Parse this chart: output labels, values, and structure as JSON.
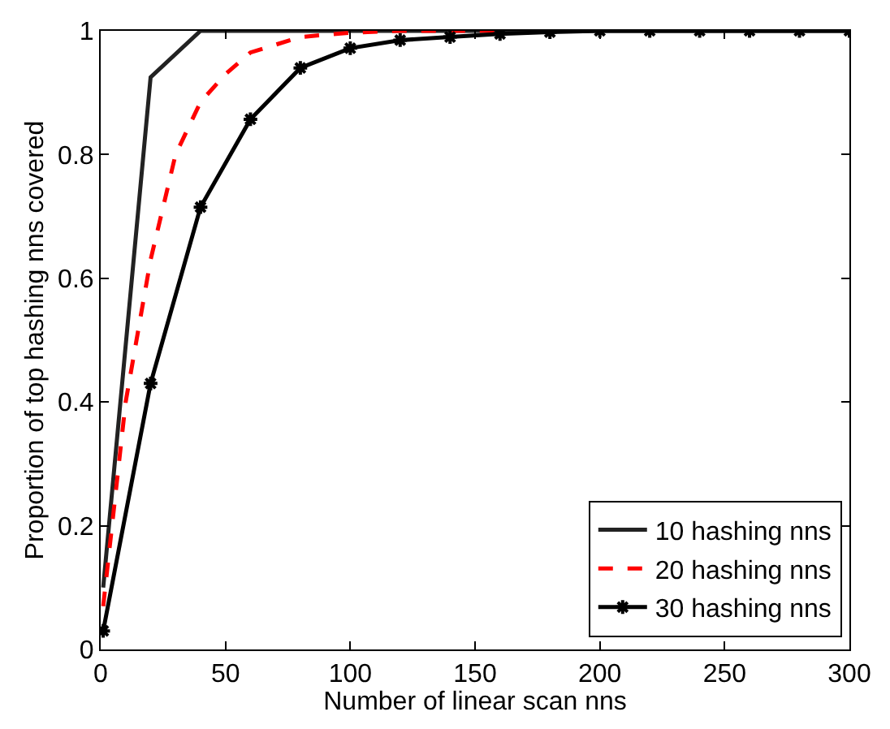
{
  "chart_data": {
    "type": "line",
    "xlabel": "Number of linear scan nns",
    "ylabel": "Proportion of top hashing nns covered",
    "xlim": [
      0,
      300
    ],
    "xticks": [
      0,
      50,
      100,
      150,
      200,
      250,
      300
    ],
    "ylim": [
      0,
      1
    ],
    "yticks": [
      0,
      0.2,
      0.4,
      0.6,
      0.8,
      1
    ],
    "legend": "bottom right",
    "series": [
      {
        "name": "10 hashing nns",
        "color": "#222222",
        "line_style": "solid",
        "marker": "none",
        "x": [
          1,
          20,
          40,
          60,
          80,
          100,
          120,
          140,
          160,
          180,
          200,
          220,
          240,
          260,
          280,
          300
        ],
        "values": [
          0.1,
          0.925,
          1,
          1,
          1,
          1,
          1,
          1,
          1,
          1,
          1,
          1,
          1,
          1,
          1,
          1
        ]
      },
      {
        "name": "20 hashing nns",
        "color": "#ff0000",
        "line_style": "dashed",
        "marker": "none",
        "x": [
          1,
          10,
          20,
          30,
          40,
          50,
          60,
          80,
          100,
          120,
          140,
          160
        ],
        "values": [
          0.07,
          0.4,
          0.63,
          0.8,
          0.885,
          0.93,
          0.965,
          0.99,
          0.997,
          1,
          1,
          1
        ]
      },
      {
        "name": "30 hashing nns",
        "color": "#000000",
        "line_style": "solid",
        "marker": "cross",
        "x": [
          1,
          20,
          40,
          60,
          80,
          100,
          120,
          140,
          160,
          180,
          200,
          220,
          240,
          260,
          280,
          300
        ],
        "values": [
          0.03,
          0.43,
          0.715,
          0.857,
          0.94,
          0.972,
          0.985,
          0.99,
          0.995,
          0.998,
          1,
          1,
          1,
          1,
          1,
          1
        ]
      }
    ]
  }
}
